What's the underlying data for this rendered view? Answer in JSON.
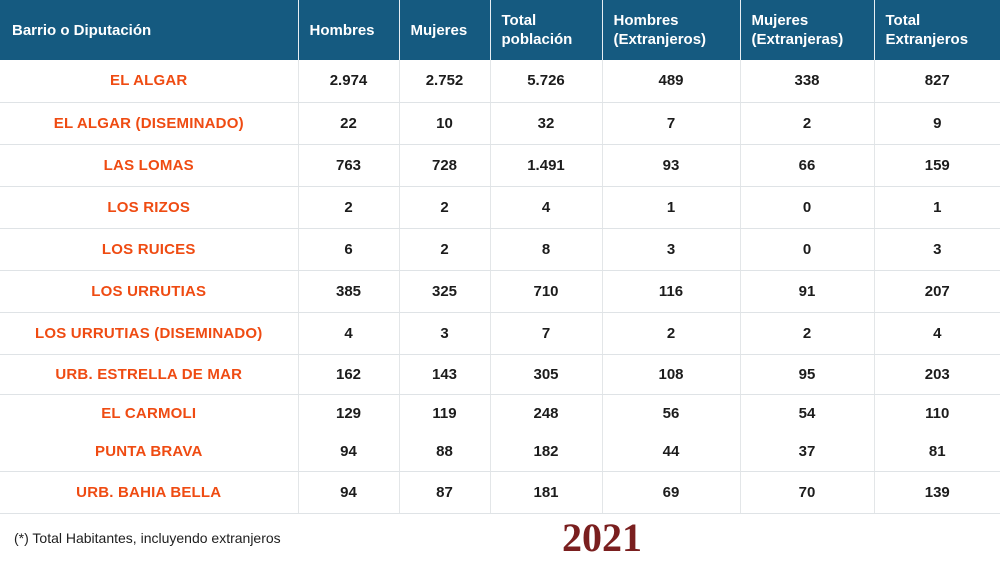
{
  "headers": [
    [
      "Barrio o Diputación"
    ],
    [
      "Hombres"
    ],
    [
      "Mujeres"
    ],
    [
      "Total",
      "población"
    ],
    [
      "Hombres",
      "(Extranjeros)"
    ],
    [
      "Mujeres",
      "(Extranjeras)"
    ],
    [
      "Total",
      "Extranjeros"
    ]
  ],
  "rows": [
    [
      "EL ALGAR",
      "2.974",
      "2.752",
      "5.726",
      "489",
      "338",
      "827"
    ],
    [
      "EL ALGAR (DISEMINADO)",
      "22",
      "10",
      "32",
      "7",
      "2",
      "9"
    ],
    [
      "LAS LOMAS",
      "763",
      "728",
      "1.491",
      "93",
      "66",
      "159"
    ],
    [
      "LOS RIZOS",
      "2",
      "2",
      "4",
      "1",
      "0",
      "1"
    ],
    [
      "LOS RUICES",
      "6",
      "2",
      "8",
      "3",
      "0",
      "3"
    ],
    [
      "LOS URRUTIAS",
      "385",
      "325",
      "710",
      "116",
      "91",
      "207"
    ],
    [
      "LOS URRUTIAS (DISEMINADO)",
      "4",
      "3",
      "7",
      "2",
      "2",
      "4"
    ],
    [
      "URB. ESTRELLA DE MAR",
      "162",
      "143",
      "305",
      "108",
      "95",
      "203"
    ],
    [
      "EL CARMOLI",
      "129",
      "119",
      "248",
      "56",
      "54",
      "110"
    ],
    [
      "PUNTA BRAVA",
      "94",
      "88",
      "182",
      "44",
      "37",
      "81"
    ],
    [
      "URB. BAHIA BELLA",
      "94",
      "87",
      "181",
      "69",
      "70",
      "139"
    ]
  ],
  "footnote": "(*) Total Habitantes, incluyendo extranjeros",
  "year": "2021",
  "colors": {
    "header_bg": "#155a80",
    "header_text": "#ffffff",
    "name_text": "#ef4b12",
    "year_text": "#7a1f1f"
  }
}
